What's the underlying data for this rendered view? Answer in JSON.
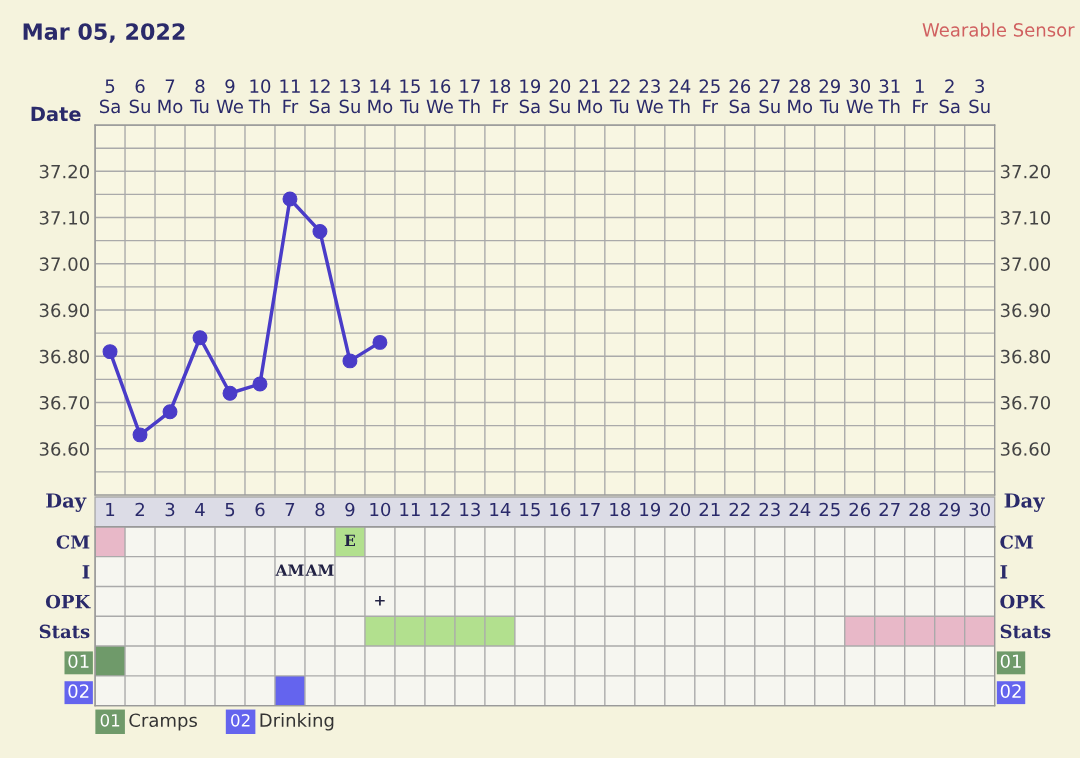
{
  "chart_data": [
    {
      "type": "line",
      "title": "Mar 05, 2022",
      "xlabel": "Date",
      "annotations": [
        "Wearable Sensor"
      ],
      "categories": [
        "5\nSa",
        "6\nSu",
        "7\nMo",
        "8\nTu",
        "9\nWe",
        "10\nTh",
        "11\nFr",
        "12\nSa",
        "13\nSu",
        "14\nMo",
        "15\nTu",
        "16\nWe",
        "17\nTh",
        "18\nFr",
        "19\nSa",
        "20\nSu",
        "21\nMo",
        "22\nTu",
        "23\nWe",
        "24\nTh",
        "25\nFr",
        "26\nSa",
        "27\nSu",
        "28\nMo",
        "29\nTu",
        "30\nWe",
        "31\nTh",
        "1\nFr",
        "2\nSa",
        "3\nSu"
      ],
      "series": [
        {
          "color": "#4a3cc8",
          "values": [
            36.81,
            36.63,
            36.68,
            36.84,
            36.72,
            36.74,
            37.14,
            37.07,
            36.79,
            36.83,
            null,
            null,
            null,
            null,
            null,
            null,
            null,
            null,
            null,
            null,
            null,
            null,
            null,
            null,
            null,
            null,
            null,
            null,
            null,
            null
          ]
        }
      ],
      "ylim": [
        36.5,
        37.3
      ],
      "yticks": [
        {
          "value": 36.55,
          "label": null
        },
        "36.60",
        {
          "value": 36.65,
          "label": null
        },
        {
          "value": 36.7,
          "label": "36.70"
        },
        {
          "value": 36.75,
          "label": null
        },
        {
          "value": 36.8,
          "label": "36.80"
        },
        {
          "value": 36.85,
          "label": null
        },
        {
          "value": 36.9,
          "label": "36.90"
        },
        {
          "value": 36.95,
          "label": null
        },
        {
          "value": 37.0,
          "label": "37.00"
        },
        {
          "value": 37.05,
          "label": null
        },
        {
          "value": 37.1,
          "label": "37.10"
        },
        {
          "value": 37.15,
          "label": null
        },
        {
          "value": 37.2,
          "label": "37.20"
        },
        {
          "value": 37.25,
          "label": null
        }
      ],
      "y2lim": [
        36.5,
        37.3
      ],
      "y2ticks": [
        {
          "value": 36.55,
          "label": null
        },
        "36.60",
        {
          "value": 36.65,
          "label": null
        },
        {
          "value": 36.7,
          "label": "36.70"
        },
        {
          "value": 36.75,
          "label": null
        },
        {
          "value": 36.8,
          "label": "36.80"
        },
        {
          "value": 36.85,
          "label": null
        },
        {
          "value": 36.9,
          "label": "36.90"
        },
        {
          "value": 36.95,
          "label": null
        },
        {
          "value": 37.0,
          "label": "37.00"
        },
        {
          "value": 37.05,
          "label": null
        },
        {
          "value": 37.1,
          "label": "37.10"
        },
        {
          "value": 37.15,
          "label": null
        },
        {
          "value": 37.2,
          "label": "37.20"
        },
        {
          "value": 37.25,
          "label": null
        }
      ],
      "marker": "circle",
      "line_style": "solid",
      "grid": true,
      "legend": false
    },
    {
      "type": "heatmap",
      "xlabel": "Day",
      "categories": [
        "1",
        "2",
        "3",
        "4",
        "5",
        "6",
        "7",
        "8",
        "9",
        "10",
        "11",
        "12",
        "13",
        "14",
        "15",
        "16",
        "17",
        "18",
        "19",
        "20",
        "21",
        "22",
        "23",
        "24",
        "25",
        "26",
        "27",
        "28",
        "29",
        "30"
      ],
      "y_categories": [
        "CM",
        "I",
        "OPK",
        "Stats",
        "01",
        "02"
      ],
      "y2_categories": [
        "CM",
        "I",
        "OPK",
        "Stats",
        "01",
        "02"
      ],
      "cells": [
        [
          null,
          null,
          null,
          null,
          null,
          null,
          null,
          null,
          null,
          null,
          null,
          null,
          null,
          null,
          null,
          null,
          null,
          null,
          null,
          null,
          null,
          null,
          null,
          null,
          null,
          null,
          null,
          null,
          null,
          null
        ],
        [
          null,
          null,
          null,
          null,
          null,
          null,
          null,
          null,
          null,
          null,
          null,
          null,
          null,
          null,
          null,
          null,
          null,
          null,
          null,
          null,
          null,
          null,
          null,
          null,
          null,
          null,
          null,
          null,
          null,
          null
        ],
        [
          null,
          null,
          null,
          null,
          null,
          null,
          null,
          null,
          null,
          null,
          null,
          null,
          null,
          null,
          null,
          null,
          null,
          null,
          null,
          null,
          null,
          null,
          null,
          null,
          null,
          null,
          null,
          null,
          null,
          null
        ],
        [
          null,
          null,
          null,
          null,
          null,
          null,
          null,
          null,
          null,
          null,
          null,
          null,
          null,
          null,
          null,
          null,
          null,
          null,
          null,
          null,
          null,
          null,
          null,
          null,
          null,
          null,
          null,
          null,
          null,
          null
        ],
        [
          null,
          null,
          null,
          null,
          null,
          null,
          null,
          null,
          null,
          null,
          null,
          null,
          null,
          null,
          null,
          null,
          null,
          null,
          null,
          null,
          null,
          null,
          null,
          null,
          null,
          null,
          null,
          null,
          null,
          null
        ],
        [
          null,
          null,
          null,
          null,
          null,
          null,
          null,
          null,
          null,
          null,
          null,
          null,
          null,
          null,
          null,
          null,
          null,
          null,
          null,
          null,
          null,
          null,
          null,
          null,
          null,
          null,
          null,
          null,
          null,
          null
        ]
      ],
      "cell_labels": [
        [
          null,
          null,
          null,
          null,
          null,
          null,
          null,
          null,
          "E",
          null,
          null,
          null,
          null,
          null,
          null,
          null,
          null,
          null,
          null,
          null,
          null,
          null,
          null,
          null,
          null,
          null,
          null,
          null,
          null,
          null
        ],
        [
          null,
          null,
          null,
          null,
          null,
          null,
          "AM",
          "AM",
          null,
          null,
          null,
          null,
          null,
          null,
          null,
          null,
          null,
          null,
          null,
          null,
          null,
          null,
          null,
          null,
          null,
          null,
          null,
          null,
          null,
          null
        ],
        [
          null,
          null,
          null,
          null,
          null,
          null,
          null,
          null,
          null,
          "+",
          null,
          null,
          null,
          null,
          null,
          null,
          null,
          null,
          null,
          null,
          null,
          null,
          null,
          null,
          null,
          null,
          null,
          null,
          null,
          null
        ],
        [
          null,
          null,
          null,
          null,
          null,
          null,
          null,
          null,
          null,
          null,
          null,
          null,
          null,
          null,
          null,
          null,
          null,
          null,
          null,
          null,
          null,
          null,
          null,
          null,
          null,
          null,
          null,
          null,
          null,
          null
        ],
        [
          null,
          null,
          null,
          null,
          null,
          null,
          null,
          null,
          null,
          null,
          null,
          null,
          null,
          null,
          null,
          null,
          null,
          null,
          null,
          null,
          null,
          null,
          null,
          null,
          null,
          null,
          null,
          null,
          null,
          null
        ],
        [
          null,
          null,
          null,
          null,
          null,
          null,
          null,
          null,
          null,
          null,
          null,
          null,
          null,
          null,
          null,
          null,
          null,
          null,
          null,
          null,
          null,
          null,
          null,
          null,
          null,
          null,
          null,
          null,
          null,
          null
        ]
      ],
      "annotations": [
        "01 Cramps",
        "02 Drinking"
      ]
    }
  ]
}
